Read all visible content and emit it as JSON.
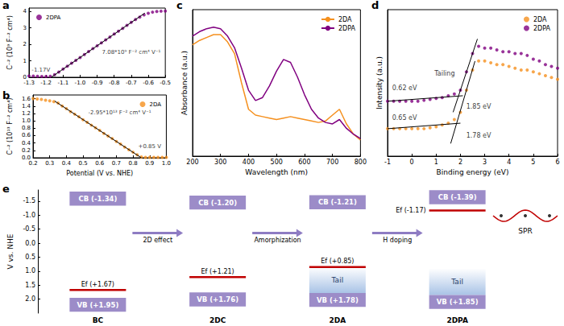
{
  "chart_data": [
    {
      "panel": "a",
      "type": "scatter",
      "ylabel": "C⁻² (10⁹ F⁻² cm⁴)",
      "x": [
        -1.3,
        -1.275,
        -1.25,
        -1.225,
        -1.2,
        -1.175,
        -1.15,
        -1.125,
        -1.1,
        -1.075,
        -1.05,
        -1.025,
        -1.0,
        -0.975,
        -0.95,
        -0.925,
        -0.9,
        -0.875,
        -0.85,
        -0.825,
        -0.8,
        -0.775,
        -0.75,
        -0.725,
        -0.7,
        -0.675,
        -0.65,
        -0.625,
        -0.6,
        -0.575,
        -0.55,
        -0.525,
        -0.5
      ],
      "xlim": [
        -1.3,
        -0.5
      ],
      "xticks": [
        -1.3,
        -1.2,
        -1.1,
        {
          "value": -1,
          "label": "-1.0"
        },
        -0.9,
        -0.8,
        -0.7,
        -0.6,
        -0.5
      ],
      "ylim": [
        0,
        4.2
      ],
      "yticks": [
        0,
        1,
        2,
        3,
        4
      ],
      "legend": "upper left",
      "grid": false,
      "series": [
        {
          "name": "2DPA",
          "color": "#800080",
          "marker": "circle",
          "values": [
            0.08,
            0.07,
            0.06,
            0.05,
            0.05,
            0.06,
            0.16,
            0.32,
            0.5,
            0.67,
            0.85,
            1.03,
            1.2,
            1.38,
            1.56,
            1.74,
            1.91,
            2.09,
            2.27,
            2.44,
            2.62,
            2.8,
            2.97,
            3.15,
            3.33,
            3.5,
            3.65,
            3.78,
            3.88,
            3.95,
            3.99,
            4.01,
            4.02
          ]
        }
      ],
      "fit_lines": [
        {
          "x": [
            -1.17,
            -0.62
          ],
          "y": [
            0,
            3.894
          ],
          "color": "#000000"
        }
      ],
      "annotations": [
        {
          "text": "-1.17V",
          "x": -1.23,
          "y": 0.45
        },
        {
          "text": "7.08*10⁹ F⁻² cm⁴ V⁻¹",
          "x": -0.7,
          "y": 1.5
        }
      ]
    },
    {
      "panel": "b",
      "type": "scatter",
      "xlabel": "Potential (V vs. NHE)",
      "ylabel": "C⁻² (10¹³ F⁻² cm⁴)",
      "x": [
        0.2,
        0.225,
        0.25,
        0.275,
        0.3,
        0.325,
        0.35,
        0.375,
        0.4,
        0.425,
        0.45,
        0.475,
        0.5,
        0.525,
        0.55,
        0.575,
        0.6,
        0.625,
        0.65,
        0.675,
        0.7,
        0.725,
        0.75,
        0.775,
        0.8,
        0.825,
        0.85,
        0.875,
        0.9,
        0.925,
        0.95,
        0.975,
        1.0
      ],
      "xlim": [
        0.2,
        1.0
      ],
      "xticks": [
        0.2,
        0.3,
        0.4,
        0.5,
        0.6,
        0.7,
        0.8,
        0.9,
        {
          "value": 1,
          "label": "1.0"
        }
      ],
      "ylim": [
        0,
        1.7
      ],
      "yticks": [
        {
          "value": 0,
          "label": "0.0"
        },
        0.2,
        0.4,
        0.6,
        0.8,
        {
          "value": 1,
          "label": "1.0"
        },
        1.2,
        1.4,
        1.6
      ],
      "legend": "upper right",
      "grid": false,
      "series": [
        {
          "name": "2DA",
          "color": "#f5901e",
          "marker": "circle",
          "values": [
            1.6,
            1.59,
            1.58,
            1.56,
            1.54,
            1.52,
            1.48,
            1.4,
            1.33,
            1.25,
            1.18,
            1.11,
            1.03,
            0.96,
            0.88,
            0.81,
            0.74,
            0.66,
            0.59,
            0.52,
            0.44,
            0.37,
            0.29,
            0.22,
            0.15,
            0.08,
            0.02,
            0.01,
            0.01,
            0.01,
            0.01,
            0.01,
            0.01
          ]
        }
      ],
      "fit_lines": [
        {
          "x": [
            0.33,
            0.85
          ],
          "y": [
            1.534,
            0
          ],
          "color": "#000000"
        }
      ],
      "annotations": [
        {
          "text": "-2.95*10¹³ F⁻² cm⁴ V⁻¹",
          "x": 0.72,
          "y": 1.22
        },
        {
          "text": "+0.85 V",
          "x": 0.9,
          "y": 0.3
        }
      ]
    },
    {
      "panel": "c",
      "type": "line",
      "xlabel": "Wavelength (nm)",
      "ylabel": "Absorbance (a.u.)",
      "x": [
        200,
        225,
        250,
        275,
        300,
        325,
        350,
        375,
        400,
        425,
        450,
        475,
        500,
        525,
        550,
        575,
        600,
        625,
        650,
        675,
        700,
        725,
        750,
        775,
        800
      ],
      "xlim": [
        200,
        800
      ],
      "xticks": [
        200,
        300,
        400,
        500,
        600,
        700,
        800
      ],
      "ylim": [
        0,
        1
      ],
      "tick_labels": "x",
      "legend": "upper right",
      "grid": false,
      "series": [
        {
          "name": "2DA",
          "color": "#f5901e",
          "values": [
            0.76,
            0.79,
            0.81,
            0.83,
            0.83,
            0.78,
            0.7,
            0.5,
            0.32,
            0.28,
            0.27,
            0.26,
            0.25,
            0.26,
            0.27,
            0.26,
            0.25,
            0.24,
            0.23,
            0.24,
            0.28,
            0.32,
            0.22,
            0.15,
            0.11
          ]
        },
        {
          "name": "2DPA",
          "color": "#800080",
          "values": [
            0.82,
            0.85,
            0.87,
            0.88,
            0.87,
            0.82,
            0.74,
            0.6,
            0.45,
            0.38,
            0.4,
            0.48,
            0.58,
            0.66,
            0.64,
            0.54,
            0.42,
            0.32,
            0.26,
            0.23,
            0.22,
            0.25,
            0.19,
            0.15,
            0.12
          ]
        }
      ]
    },
    {
      "panel": "d",
      "type": "scatter",
      "xlabel": "Binding energy (eV)",
      "ylabel": "Intensity (a.u.)",
      "x": [
        -1,
        -0.75,
        -0.5,
        -0.25,
        0,
        0.25,
        0.5,
        0.75,
        1,
        1.25,
        1.5,
        1.75,
        2,
        2.25,
        2.5,
        2.75,
        3,
        3.25,
        3.5,
        3.75,
        4,
        4.25,
        4.5,
        4.75,
        5,
        5.25,
        5.5,
        5.75,
        6
      ],
      "xlim": [
        -1,
        6
      ],
      "xticks": [
        -1,
        0,
        1,
        2,
        3,
        4,
        5,
        6
      ],
      "ylim": [
        0,
        0.8
      ],
      "tick_labels": "x",
      "legend": "upper right",
      "grid": false,
      "series": [
        {
          "name": "2DA",
          "color": "#f5901e",
          "marker": "circle",
          "values": [
            0.15,
            0.15,
            0.15,
            0.15,
            0.15,
            0.15,
            0.15,
            0.155,
            0.16,
            0.17,
            0.18,
            0.2,
            0.24,
            0.36,
            0.47,
            0.52,
            0.52,
            0.51,
            0.5,
            0.5,
            0.49,
            0.48,
            0.47,
            0.47,
            0.46,
            0.45,
            0.44,
            0.43,
            0.42
          ]
        },
        {
          "name": "2DPA",
          "color": "#800080",
          "marker": "circle",
          "values": [
            0.3,
            0.3,
            0.3,
            0.3,
            0.3,
            0.3,
            0.305,
            0.31,
            0.315,
            0.32,
            0.33,
            0.34,
            0.36,
            0.46,
            0.56,
            0.6,
            0.59,
            0.59,
            0.58,
            0.57,
            0.57,
            0.56,
            0.56,
            0.55,
            0.53,
            0.52,
            0.5,
            0.49,
            0.48
          ]
        }
      ],
      "fit_lines": [
        {
          "x": [
            -1,
            2.1
          ],
          "y": [
            0.3,
            0.33
          ],
          "color": "#000000"
        },
        {
          "x": [
            1.7,
            2.7
          ],
          "y": [
            0.24,
            0.64
          ],
          "color": "#000000"
        },
        {
          "x": [
            -1,
            2.0
          ],
          "y": [
            0.15,
            0.18
          ],
          "color": "#000000"
        },
        {
          "x": [
            1.6,
            2.6
          ],
          "y": [
            0.069,
            0.519
          ],
          "color": "#000000"
        }
      ],
      "annotations": [
        {
          "text": "Tailing",
          "x": 1.35,
          "y": 0.45
        },
        {
          "text": "0.62 eV",
          "x": -0.3,
          "y": 0.37
        },
        {
          "text": "1.85 eV",
          "x": 2.75,
          "y": 0.27
        },
        {
          "text": "0.65 eV",
          "x": -0.3,
          "y": 0.21
        },
        {
          "text": "1.78 eV",
          "x": 2.75,
          "y": 0.11
        }
      ]
    },
    {
      "panel": "e",
      "type": "band_diagram",
      "ylabel": "V vs. NHE",
      "ylim": [
        -1.9,
        2.5
      ],
      "yticks": [
        -1.5,
        {
          "value": -1,
          "label": "-1.0"
        },
        -0.5,
        {
          "value": 0,
          "label": "0.0"
        },
        0.5,
        {
          "value": 1,
          "label": "1.0"
        },
        1.5,
        {
          "value": 2,
          "label": "2.0"
        }
      ],
      "grid": false,
      "categories": [
        "BC",
        "2DC",
        "2DA",
        "2DPA"
      ],
      "cb": [
        -1.34,
        -1.2,
        -1.21,
        -1.39
      ],
      "cb_labels": [
        "CB (-1.34)",
        "CB (-1.20)",
        "CB (-1.21)",
        "CB (-1.39)"
      ],
      "vb": [
        1.95,
        1.76,
        1.78,
        1.85
      ],
      "vb_labels": [
        "VB (+1.95)",
        "VB (+1.76)",
        "VB (+1.78)",
        "VB (+1.85)"
      ],
      "ef": [
        1.67,
        1.21,
        0.85,
        -1.17
      ],
      "ef_labels": [
        "Ef (+1.67)",
        "Ef (+1.21)",
        "Ef (+0.85)",
        "Ef (-1.17)"
      ],
      "tail_top": [
        null,
        null,
        0.85,
        0.9
      ],
      "tail_label": "Tail",
      "transitions": [
        "2D effect",
        "Amorphization",
        "H doping"
      ],
      "annotations": [
        {
          "text": "SPR"
        }
      ]
    }
  ]
}
